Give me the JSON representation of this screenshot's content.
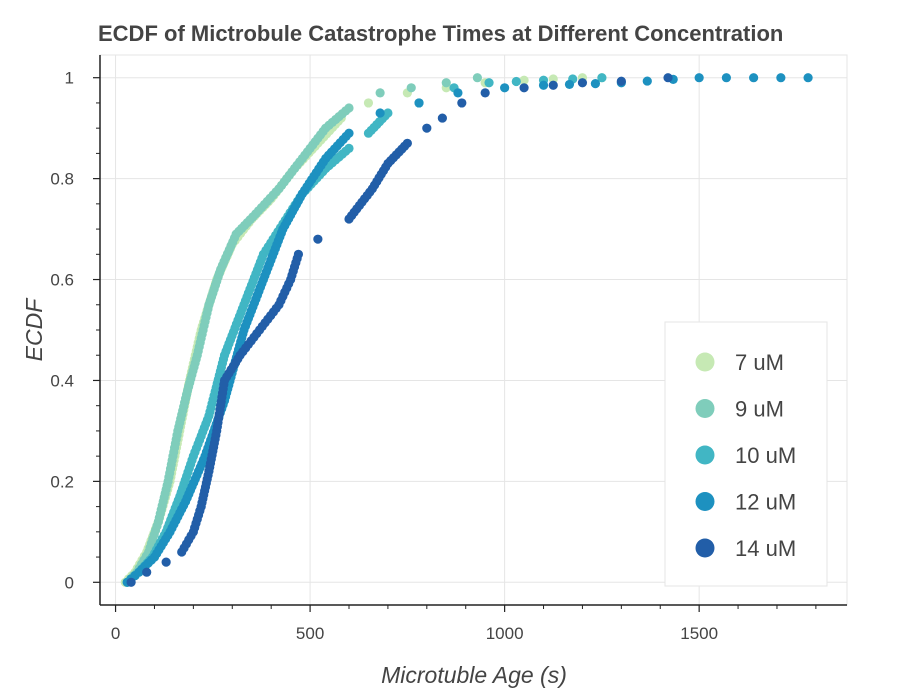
{
  "chart_data": {
    "type": "scatter",
    "title": "ECDF of Mictrobule Catastrophe Times at Different Concentration",
    "xlabel": "Microtuble Age (s)",
    "ylabel": "ECDF",
    "xlim": [
      -40,
      1880
    ],
    "ylim": [
      -0.045,
      1.045
    ],
    "x_ticks": [
      {
        "value": 0,
        "label": "0"
      },
      {
        "value": 500,
        "label": "500"
      },
      {
        "value": 1000,
        "label": "1000"
      },
      {
        "value": 1500,
        "label": "1500"
      }
    ],
    "y_ticks": [
      {
        "value": 0,
        "label": "0"
      },
      {
        "value": 0.2,
        "label": "0.2"
      },
      {
        "value": 0.4,
        "label": "0.4"
      },
      {
        "value": 0.6,
        "label": "0.6"
      },
      {
        "value": 0.8,
        "label": "0.8"
      },
      {
        "value": 1,
        "label": "1"
      }
    ],
    "grid": true,
    "legend_position": "bottom-right",
    "series": [
      {
        "name": "7 uM",
        "color": "#c6e9b4",
        "points": [
          [
            25,
            0
          ],
          [
            50,
            0.02
          ],
          [
            80,
            0.06
          ],
          [
            110,
            0.12
          ],
          [
            140,
            0.2
          ],
          [
            165,
            0.3
          ],
          [
            190,
            0.4
          ],
          [
            220,
            0.5
          ],
          [
            260,
            0.6
          ],
          [
            300,
            0.67
          ],
          [
            350,
            0.72
          ],
          [
            400,
            0.76
          ],
          [
            460,
            0.82
          ],
          [
            520,
            0.87
          ],
          [
            580,
            0.92
          ],
          [
            650,
            0.95
          ],
          [
            750,
            0.97
          ],
          [
            850,
            0.98
          ],
          [
            950,
            0.99
          ],
          [
            1050,
            0.995
          ],
          [
            1200,
            1.0
          ],
          [
            1250,
            1.0
          ]
        ]
      },
      {
        "name": "9 uM",
        "color": "#7fcdbb",
        "points": [
          [
            30,
            0
          ],
          [
            55,
            0.02
          ],
          [
            85,
            0.06
          ],
          [
            110,
            0.12
          ],
          [
            135,
            0.2
          ],
          [
            160,
            0.3
          ],
          [
            185,
            0.38
          ],
          [
            210,
            0.45
          ],
          [
            240,
            0.55
          ],
          [
            270,
            0.62
          ],
          [
            310,
            0.69
          ],
          [
            360,
            0.73
          ],
          [
            420,
            0.78
          ],
          [
            480,
            0.84
          ],
          [
            540,
            0.9
          ],
          [
            600,
            0.94
          ],
          [
            680,
            0.97
          ],
          [
            760,
            0.98
          ],
          [
            850,
            0.99
          ],
          [
            930,
            1.0
          ]
        ]
      },
      {
        "name": "10 uM",
        "color": "#41b6c4",
        "points": [
          [
            30,
            0
          ],
          [
            60,
            0.02
          ],
          [
            95,
            0.05
          ],
          [
            130,
            0.1
          ],
          [
            165,
            0.17
          ],
          [
            200,
            0.25
          ],
          [
            240,
            0.33
          ],
          [
            280,
            0.45
          ],
          [
            330,
            0.55
          ],
          [
            380,
            0.65
          ],
          [
            430,
            0.71
          ],
          [
            480,
            0.77
          ],
          [
            540,
            0.82
          ],
          [
            600,
            0.86
          ],
          [
            650,
            0.89
          ],
          [
            700,
            0.93
          ],
          [
            780,
            0.95
          ],
          [
            870,
            0.98
          ],
          [
            960,
            0.99
          ],
          [
            1100,
            0.995
          ],
          [
            1250,
            1.0
          ]
        ]
      },
      {
        "name": "12 uM",
        "color": "#1d91c0",
        "points": [
          [
            30,
            0
          ],
          [
            60,
            0.02
          ],
          [
            100,
            0.05
          ],
          [
            140,
            0.1
          ],
          [
            180,
            0.16
          ],
          [
            230,
            0.25
          ],
          [
            280,
            0.36
          ],
          [
            330,
            0.5
          ],
          [
            380,
            0.6
          ],
          [
            430,
            0.7
          ],
          [
            480,
            0.77
          ],
          [
            540,
            0.84
          ],
          [
            600,
            0.89
          ],
          [
            680,
            0.93
          ],
          [
            780,
            0.95
          ],
          [
            880,
            0.97
          ],
          [
            1000,
            0.98
          ],
          [
            1100,
            0.985
          ],
          [
            1300,
            0.99
          ],
          [
            1500,
            1.0
          ],
          [
            1780,
            1.0
          ]
        ]
      },
      {
        "name": "14 uM",
        "color": "#225ea8",
        "points": [
          [
            40,
            0
          ],
          [
            80,
            0.02
          ],
          [
            130,
            0.04
          ],
          [
            170,
            0.06
          ],
          [
            200,
            0.1
          ],
          [
            220,
            0.15
          ],
          [
            240,
            0.22
          ],
          [
            260,
            0.3
          ],
          [
            280,
            0.4
          ],
          [
            320,
            0.45
          ],
          [
            370,
            0.5
          ],
          [
            420,
            0.55
          ],
          [
            450,
            0.6
          ],
          [
            470,
            0.65
          ],
          [
            520,
            0.68
          ],
          [
            600,
            0.72
          ],
          [
            660,
            0.78
          ],
          [
            700,
            0.83
          ],
          [
            750,
            0.87
          ],
          [
            800,
            0.9
          ],
          [
            840,
            0.92
          ],
          [
            890,
            0.95
          ],
          [
            950,
            0.97
          ],
          [
            1050,
            0.98
          ],
          [
            1200,
            0.99
          ],
          [
            1300,
            0.993
          ],
          [
            1420,
            1.0
          ]
        ]
      }
    ]
  }
}
